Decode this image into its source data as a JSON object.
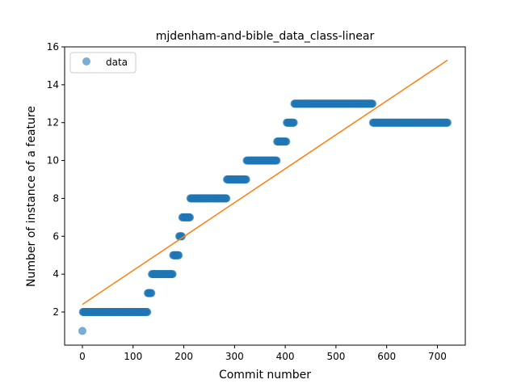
{
  "chart_data": {
    "type": "scatter",
    "title": "mjdenham-and-bible_data_class-linear",
    "xlabel": "Commit number",
    "ylabel": "Number of instance of a feature",
    "xlim": [
      -35,
      755
    ],
    "ylim": [
      0.25,
      16
    ],
    "xticks": [
      0,
      100,
      200,
      300,
      400,
      500,
      600,
      700
    ],
    "yticks": [
      2,
      4,
      6,
      8,
      10,
      12,
      14,
      16
    ],
    "grid": false,
    "legend": {
      "placement": "top-left",
      "entries": [
        "data"
      ]
    },
    "colors": {
      "data": "#1f77b4",
      "fit": "#ff7f0e"
    },
    "series": [
      {
        "name": "data",
        "kind": "scatter",
        "segments": [
          {
            "x_start": 0,
            "x_end": 0,
            "y": 1
          },
          {
            "x_start": 1,
            "x_end": 128,
            "y": 2
          },
          {
            "x_start": 129,
            "x_end": 136,
            "y": 3
          },
          {
            "x_start": 137,
            "x_end": 178,
            "y": 4
          },
          {
            "x_start": 179,
            "x_end": 190,
            "y": 5
          },
          {
            "x_start": 191,
            "x_end": 196,
            "y": 6
          },
          {
            "x_start": 197,
            "x_end": 212,
            "y": 7
          },
          {
            "x_start": 213,
            "x_end": 284,
            "y": 8
          },
          {
            "x_start": 285,
            "x_end": 323,
            "y": 9
          },
          {
            "x_start": 324,
            "x_end": 383,
            "y": 10
          },
          {
            "x_start": 384,
            "x_end": 402,
            "y": 11
          },
          {
            "x_start": 403,
            "x_end": 417,
            "y": 12
          },
          {
            "x_start": 418,
            "x_end": 572,
            "y": 13
          },
          {
            "x_start": 573,
            "x_end": 720,
            "y": 12
          }
        ]
      },
      {
        "name": "",
        "kind": "line",
        "x": [
          0,
          720
        ],
        "y": [
          2.4,
          15.3
        ]
      }
    ]
  }
}
